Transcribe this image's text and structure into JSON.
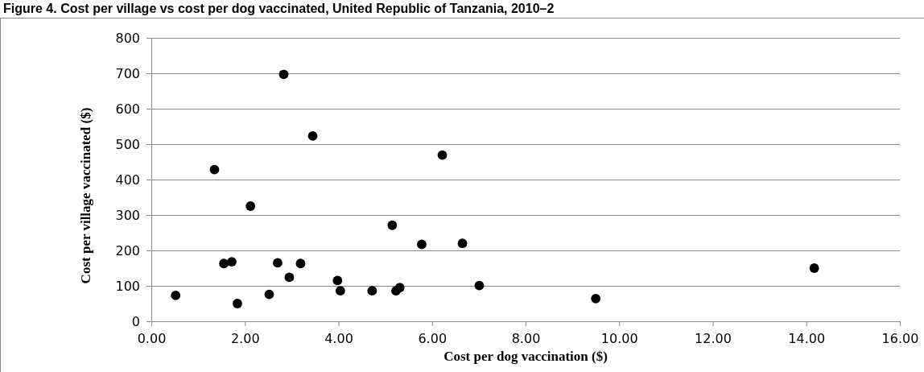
{
  "chart_data": {
    "type": "scatter",
    "title": "Figure 4. Cost per village vs cost per dog vaccinated, United Republic of Tanzania, 2010–2",
    "xlabel": "Cost per dog vaccination ($)",
    "ylabel": "Cost per village vaccinated ($)",
    "series": [
      {
        "color": "#000000",
        "x": [
          0.52,
          1.35,
          1.55,
          1.72,
          1.84,
          2.12,
          2.52,
          2.7,
          2.83,
          2.95,
          3.19,
          3.45,
          3.98,
          4.04,
          4.72,
          5.15,
          5.23,
          5.31,
          5.78,
          6.22,
          6.65,
          7.01,
          9.5,
          14.17
        ],
        "values": [
          73,
          428,
          163,
          168,
          50,
          325,
          76,
          165,
          697,
          124,
          163,
          523,
          115,
          86,
          86,
          271,
          86,
          95,
          217,
          469,
          220,
          101,
          64,
          150
        ]
      }
    ],
    "xlim": [
      0,
      16
    ],
    "xticks": [
      {
        "value": 0,
        "label": "0.00"
      },
      {
        "value": 2,
        "label": "2.00"
      },
      {
        "value": 4,
        "label": "4.00"
      },
      {
        "value": 6,
        "label": "6.00"
      },
      {
        "value": 8,
        "label": "8.00"
      },
      {
        "value": 10,
        "label": "10.00"
      },
      {
        "value": 12,
        "label": "12.00"
      },
      {
        "value": 14,
        "label": "14.00"
      },
      {
        "value": 16,
        "label": "16.00"
      }
    ],
    "ylim": [
      0,
      800
    ],
    "yticks": [
      0,
      100,
      200,
      300,
      400,
      500,
      600,
      700,
      800
    ],
    "grid": "y",
    "marker": "circle"
  }
}
